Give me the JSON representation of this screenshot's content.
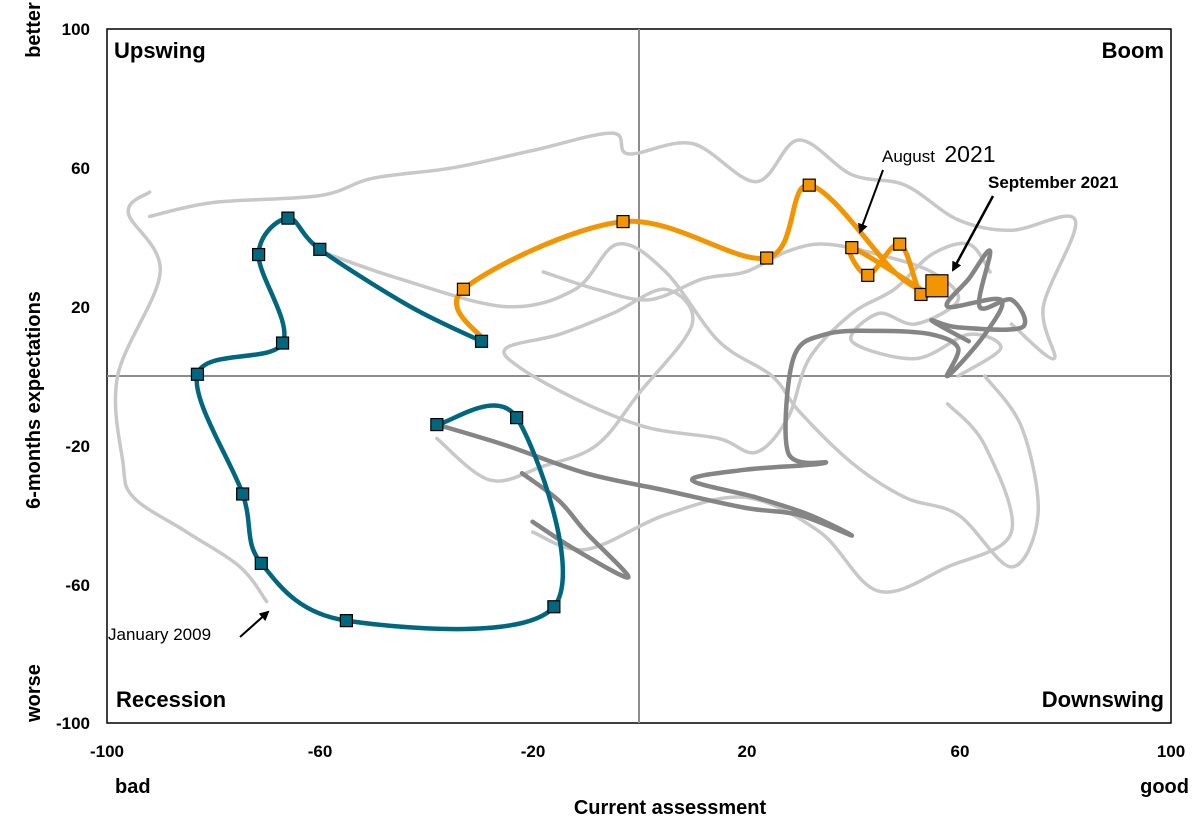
{
  "chart_data": {
    "type": "line",
    "xlabel": "Current assessment",
    "ylabel": "6-months expectations",
    "x_low_label": "bad",
    "x_high_label": "good",
    "y_low_label": "worse",
    "y_high_label": "better",
    "xlim": [
      -100,
      100
    ],
    "ylim": [
      -100,
      100
    ],
    "xticks": [
      "-100",
      "-60",
      "-20",
      "20",
      "60",
      "100"
    ],
    "yticks": [
      "100",
      "60",
      "20",
      "-20",
      "-60",
      "-100"
    ],
    "quadrants": {
      "top_left": "Upswing",
      "top_right": "Boom",
      "bottom_left": "Recession",
      "bottom_right": "Downswing"
    },
    "annotations": {
      "jan2009": "January 2009",
      "aug_month": "August",
      "aug_year": "2021",
      "sep2021": "September 2021"
    },
    "colors": {
      "history": "#c8c8c8",
      "recent": "#858585",
      "crisis": "#00677f",
      "current": "#f29500",
      "axis": "#8c8c8c"
    },
    "series": [
      {
        "role": "history",
        "points": [
          [
            -92,
            53
          ],
          [
            -96,
            47
          ],
          [
            -90,
            30
          ],
          [
            -98,
            0
          ],
          [
            -97,
            -25
          ],
          [
            -95,
            -35
          ],
          [
            -85,
            -45
          ],
          [
            -75,
            -55
          ],
          [
            -70,
            -65
          ]
        ]
      },
      {
        "role": "history",
        "points": [
          [
            -92,
            46
          ],
          [
            -80,
            50
          ],
          [
            -60,
            52
          ],
          [
            -50,
            57
          ],
          [
            -35,
            60
          ],
          [
            -20,
            65
          ],
          [
            -5,
            70
          ],
          [
            -2,
            64
          ],
          [
            10,
            67
          ],
          [
            22,
            56
          ],
          [
            30,
            68
          ],
          [
            40,
            58
          ],
          [
            50,
            55
          ],
          [
            60,
            45
          ],
          [
            70,
            42
          ],
          [
            82,
            45
          ],
          [
            76,
            20
          ],
          [
            78,
            5
          ],
          [
            70,
            15
          ]
        ]
      },
      {
        "role": "history",
        "points": [
          [
            -60,
            36
          ],
          [
            -45,
            28
          ],
          [
            -25,
            20
          ],
          [
            -12,
            25
          ],
          [
            -4,
            38
          ],
          [
            5,
            30
          ],
          [
            15,
            10
          ],
          [
            25,
            0
          ],
          [
            30,
            -10
          ],
          [
            40,
            -25
          ],
          [
            50,
            -35
          ],
          [
            60,
            -40
          ],
          [
            70,
            -55
          ],
          [
            75,
            -40
          ],
          [
            72,
            -15
          ],
          [
            65,
            0
          ]
        ]
      },
      {
        "role": "history",
        "points": [
          [
            -38,
            -18
          ],
          [
            -28,
            -30
          ],
          [
            -18,
            -26
          ],
          [
            -8,
            -20
          ],
          [
            0,
            -5
          ],
          [
            10,
            15
          ],
          [
            5,
            25
          ],
          [
            -5,
            18
          ],
          [
            -15,
            12
          ],
          [
            -25,
            8
          ],
          [
            -22,
            2
          ],
          [
            -10,
            -8
          ],
          [
            2,
            -15
          ],
          [
            15,
            -18
          ],
          [
            22,
            -22
          ],
          [
            28,
            -12
          ],
          [
            32,
            5
          ],
          [
            40,
            18
          ],
          [
            48,
            25
          ],
          [
            55,
            35
          ],
          [
            62,
            38
          ],
          [
            66,
            30
          ]
        ]
      },
      {
        "role": "history",
        "points": [
          [
            -20,
            -45
          ],
          [
            -10,
            -50
          ],
          [
            5,
            -40
          ],
          [
            20,
            -35
          ],
          [
            34,
            -45
          ],
          [
            45,
            -62
          ],
          [
            58,
            -55
          ],
          [
            70,
            -45
          ],
          [
            65,
            -20
          ],
          [
            58,
            -8
          ]
        ]
      },
      {
        "role": "history",
        "points": [
          [
            -18,
            30
          ],
          [
            -8,
            25
          ],
          [
            2,
            22
          ],
          [
            12,
            28
          ],
          [
            20,
            30
          ],
          [
            28,
            36
          ],
          [
            35,
            38
          ],
          [
            45,
            35
          ],
          [
            55,
            30
          ],
          [
            60,
            22
          ],
          [
            52,
            15
          ],
          [
            45,
            18
          ],
          [
            40,
            10
          ],
          [
            52,
            5
          ],
          [
            62,
            12
          ],
          [
            68,
            8
          ],
          [
            60,
            0
          ]
        ]
      },
      {
        "role": "recent",
        "points": [
          [
            -38,
            -14
          ],
          [
            -25,
            -20
          ],
          [
            -10,
            -28
          ],
          [
            5,
            -33
          ],
          [
            20,
            -38
          ],
          [
            30,
            -40
          ],
          [
            40,
            -46
          ],
          [
            32,
            -40
          ],
          [
            22,
            -35
          ],
          [
            10,
            -30
          ],
          [
            20,
            -27
          ],
          [
            35,
            -25
          ],
          [
            28,
            -22
          ],
          [
            29,
            5
          ],
          [
            35,
            12
          ],
          [
            45,
            13
          ],
          [
            55,
            12
          ],
          [
            60,
            8
          ],
          [
            58,
            0
          ],
          [
            65,
            12
          ],
          [
            68,
            22
          ],
          [
            58,
            20
          ],
          [
            62,
            28
          ],
          [
            66,
            36
          ],
          [
            64,
            20
          ],
          [
            70,
            22
          ],
          [
            72,
            14
          ],
          [
            60,
            14
          ],
          [
            55,
            16
          ],
          [
            62,
            10
          ]
        ]
      },
      {
        "role": "recent",
        "points": [
          [
            -22,
            -28
          ],
          [
            -15,
            -36
          ],
          [
            -10,
            -45
          ],
          [
            -2,
            -58
          ],
          [
            -12,
            -50
          ],
          [
            -20,
            -42
          ]
        ]
      },
      {
        "role": "crisis",
        "points": [
          [
            -29.6,
            10
          ],
          [
            -43,
            20
          ],
          [
            -60,
            36.5
          ],
          [
            -66,
            45.5
          ],
          [
            -71.5,
            35
          ],
          [
            -67,
            9.5
          ],
          [
            -83,
            0.5
          ],
          [
            -74.5,
            -34
          ],
          [
            -71,
            -54
          ],
          [
            -55,
            -70.5
          ],
          [
            -16,
            -66.5
          ],
          [
            -23,
            -12
          ],
          [
            -38,
            -14
          ]
        ],
        "markers": [
          [
            -29.6,
            10
          ],
          [
            -60,
            36.5
          ],
          [
            -66,
            45.5
          ],
          [
            -71.5,
            35
          ],
          [
            -67,
            9.5
          ],
          [
            -83,
            0.5
          ],
          [
            -74.5,
            -34
          ],
          [
            -71,
            -54
          ],
          [
            -55,
            -70.5
          ],
          [
            -16,
            -66.5
          ],
          [
            -23,
            -12
          ],
          [
            -38,
            -14
          ]
        ]
      },
      {
        "role": "current",
        "points": [
          [
            -29,
            10
          ],
          [
            -33,
            25
          ],
          [
            -3,
            44.5
          ],
          [
            24,
            34
          ],
          [
            32,
            55
          ],
          [
            48,
            30
          ],
          [
            53,
            25
          ],
          [
            40,
            37
          ],
          [
            43,
            29
          ],
          [
            49,
            38
          ],
          [
            53,
            23.5
          ],
          [
            56,
            26
          ]
        ],
        "markers": [
          [
            -33,
            25
          ],
          [
            -3,
            44.5
          ],
          [
            24,
            34
          ],
          [
            32,
            55
          ],
          [
            40,
            37
          ],
          [
            43,
            29
          ],
          [
            49,
            38
          ],
          [
            53,
            23.5
          ]
        ],
        "latest": [
          56,
          26
        ]
      }
    ]
  }
}
